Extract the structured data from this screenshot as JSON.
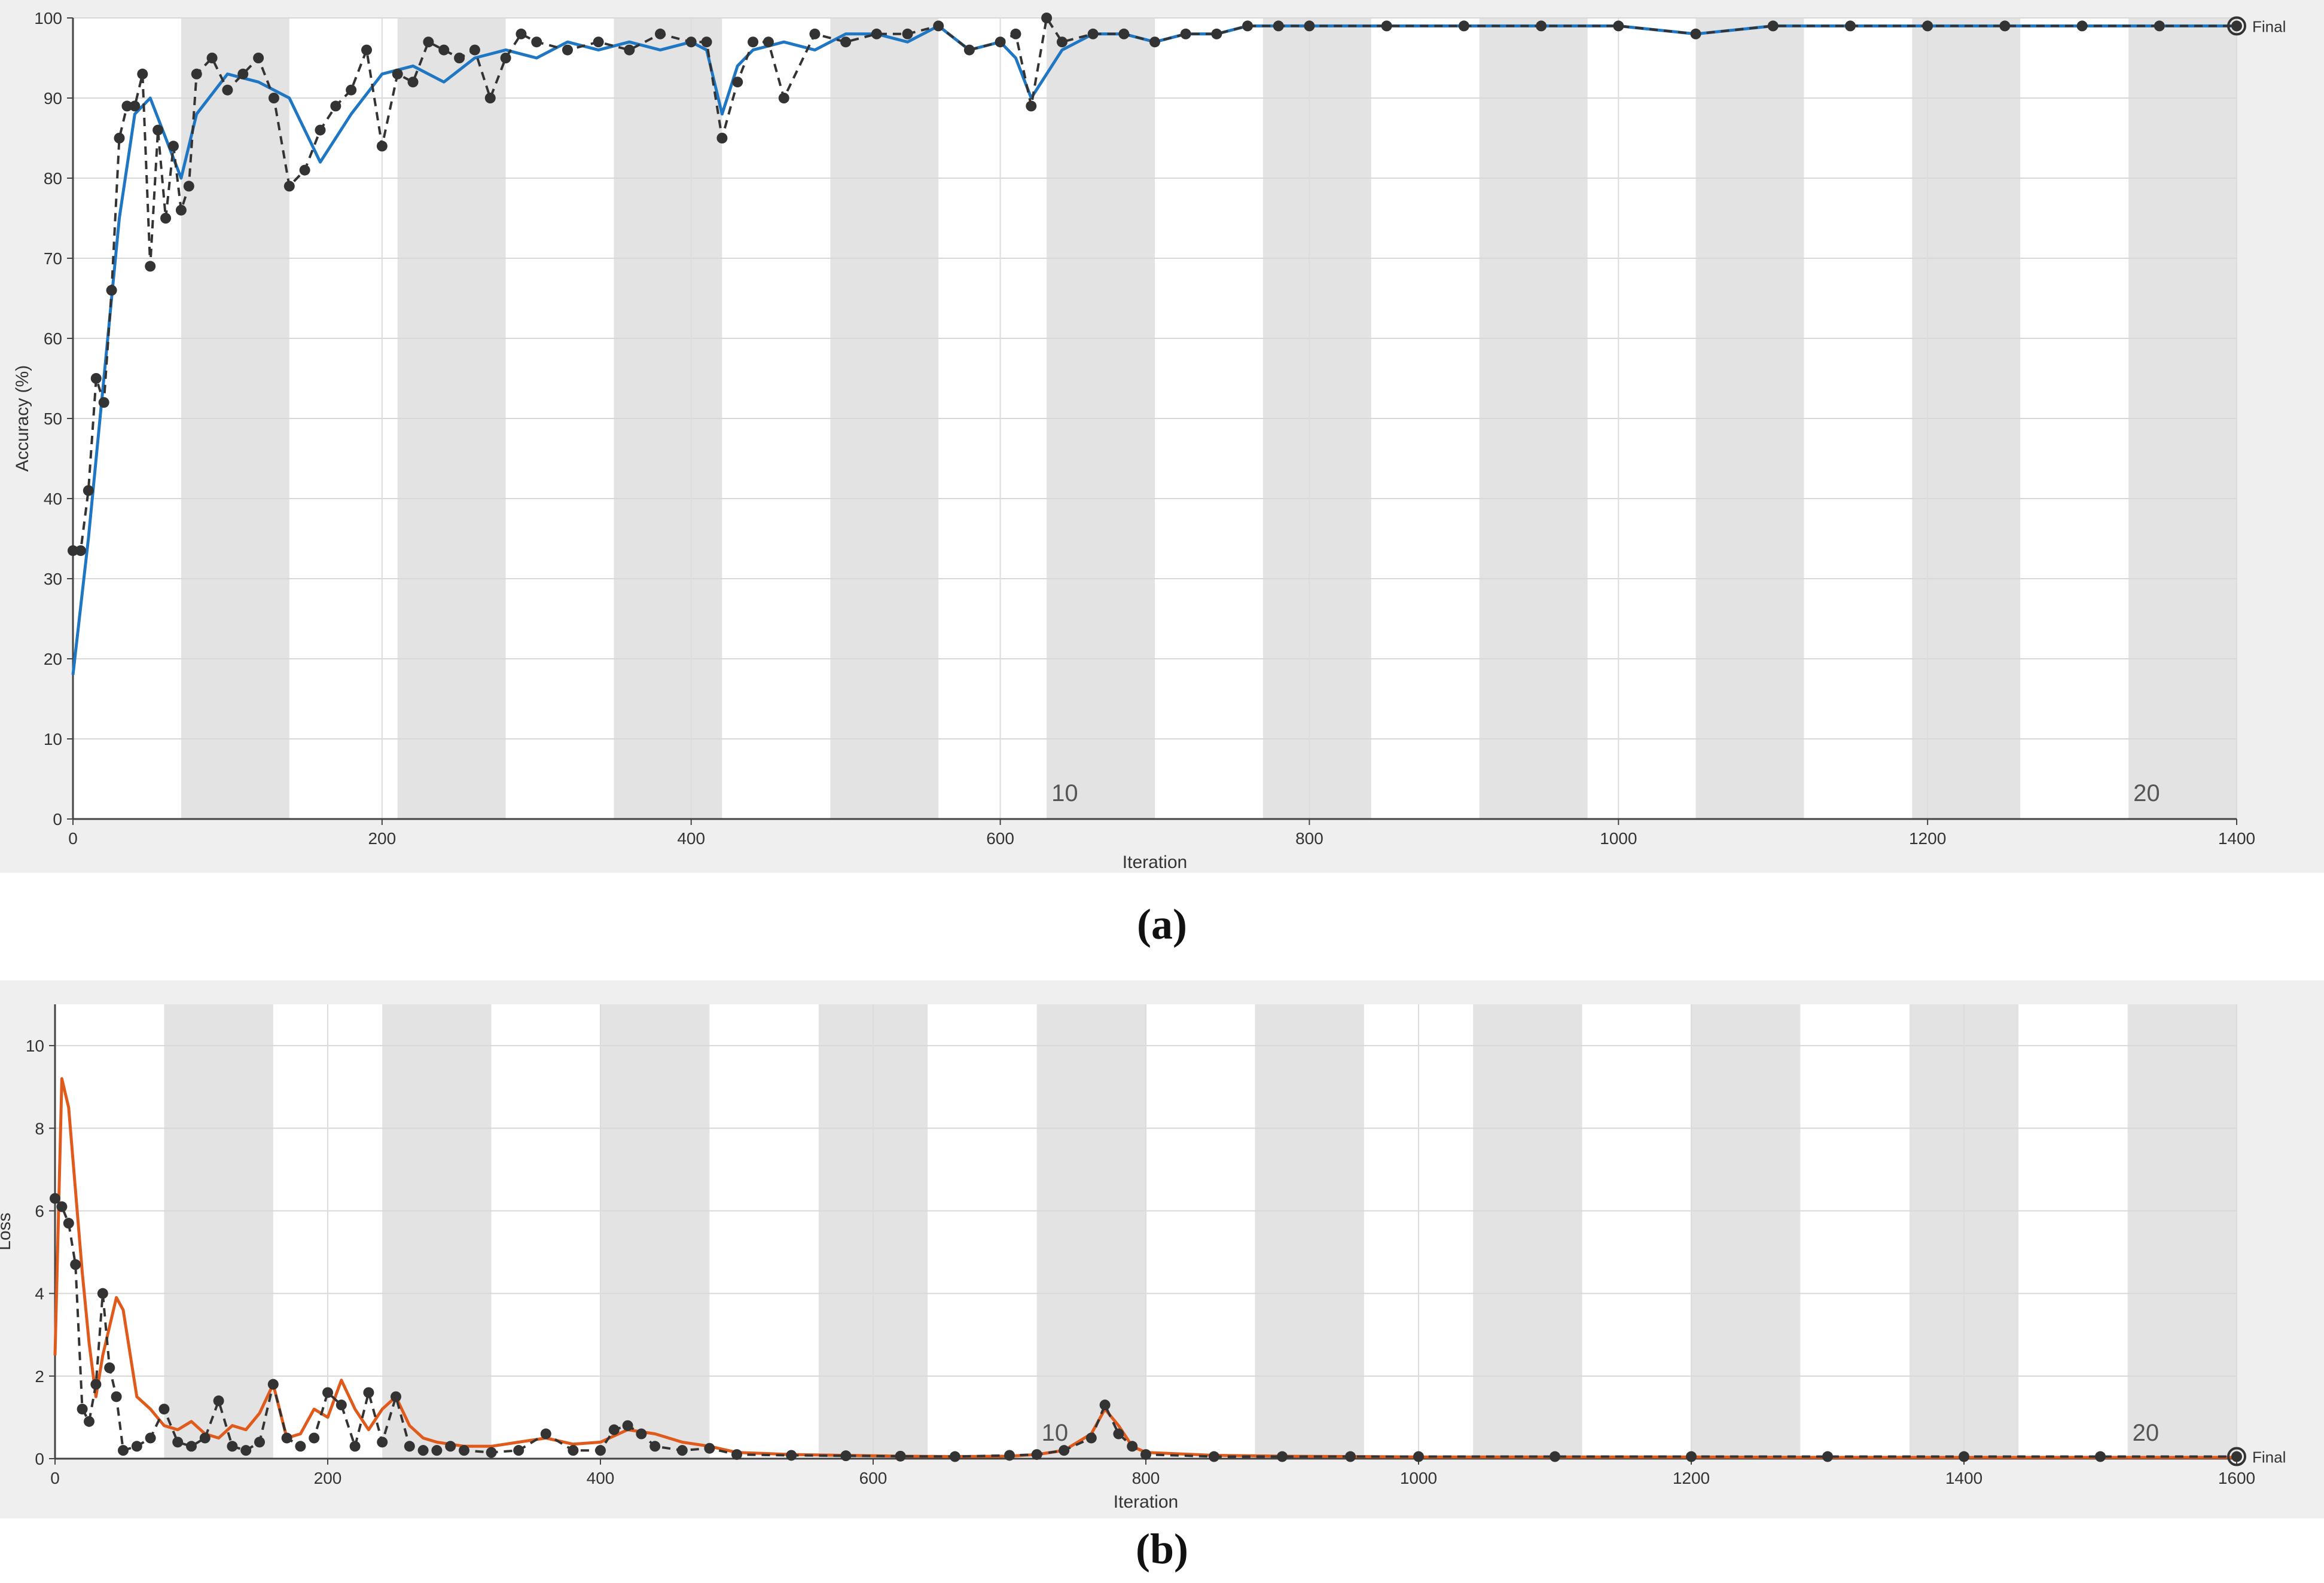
{
  "captions": {
    "a": "(a)",
    "b": "(b)"
  },
  "colors": {
    "accuracy_line": "#1f77c4",
    "loss_line": "#e05a1c",
    "validation": "#333333",
    "epoch_band": "#e3e3e3",
    "frame": "#efefef"
  },
  "chart_data": [
    {
      "type": "line",
      "panel": "a",
      "xlabel": "Iteration",
      "ylabel": "Accuracy (%)",
      "xlim": [
        0,
        1400
      ],
      "ylim": [
        0,
        100
      ],
      "x_ticks": [
        0,
        200,
        400,
        600,
        800,
        1000,
        1200,
        1400
      ],
      "y_ticks": [
        0,
        10,
        20,
        30,
        40,
        50,
        60,
        70,
        80,
        90,
        100
      ],
      "grid": true,
      "epoch_band_width": 70,
      "epoch_labels": [
        {
          "epoch": "10",
          "x": 630
        },
        {
          "epoch": "20",
          "x": 1330
        }
      ],
      "final_label": "Final",
      "series": [
        {
          "style": "training-smoothed",
          "x": [
            0,
            10,
            20,
            30,
            40,
            50,
            60,
            70,
            80,
            100,
            120,
            140,
            160,
            180,
            200,
            220,
            240,
            260,
            280,
            300,
            320,
            340,
            360,
            380,
            400,
            410,
            420,
            430,
            440,
            460,
            480,
            500,
            520,
            540,
            560,
            580,
            600,
            610,
            620,
            640,
            660,
            680,
            700,
            720,
            740,
            760,
            780,
            800,
            850,
            900,
            950,
            1000,
            1050,
            1100,
            1150,
            1200,
            1250,
            1300,
            1350,
            1400
          ],
          "y": [
            18,
            35,
            55,
            75,
            88,
            90,
            85,
            80,
            88,
            93,
            92,
            90,
            82,
            88,
            93,
            94,
            92,
            95,
            96,
            95,
            97,
            96,
            97,
            96,
            97,
            96,
            88,
            94,
            96,
            97,
            96,
            98,
            98,
            97,
            99,
            96,
            97,
            95,
            90,
            96,
            98,
            98,
            97,
            98,
            98,
            99,
            99,
            99,
            99,
            99,
            99,
            99,
            98,
            99,
            99,
            99,
            99,
            99,
            99,
            99
          ]
        },
        {
          "style": "validation",
          "x": [
            0,
            5,
            10,
            15,
            20,
            25,
            30,
            35,
            40,
            45,
            50,
            55,
            60,
            65,
            70,
            75,
            80,
            90,
            100,
            110,
            120,
            130,
            140,
            150,
            160,
            170,
            180,
            190,
            200,
            210,
            220,
            230,
            240,
            250,
            260,
            270,
            280,
            290,
            300,
            320,
            340,
            360,
            380,
            400,
            410,
            420,
            430,
            440,
            450,
            460,
            480,
            500,
            520,
            540,
            560,
            580,
            600,
            610,
            620,
            630,
            640,
            660,
            680,
            700,
            720,
            740,
            760,
            780,
            800,
            850,
            900,
            950,
            1000,
            1050,
            1100,
            1150,
            1200,
            1250,
            1300,
            1350,
            1400
          ],
          "y": [
            33.5,
            33.5,
            41,
            55,
            52,
            66,
            85,
            89,
            89,
            93,
            69,
            86,
            75,
            84,
            76,
            79,
            93,
            95,
            91,
            93,
            95,
            90,
            79,
            81,
            86,
            89,
            91,
            96,
            84,
            93,
            92,
            97,
            96,
            95,
            96,
            90,
            95,
            98,
            97,
            96,
            97,
            96,
            98,
            97,
            97,
            85,
            92,
            97,
            97,
            90,
            98,
            97,
            98,
            98,
            99,
            96,
            97,
            98,
            89,
            100,
            97,
            98,
            98,
            97,
            98,
            98,
            99,
            99,
            99,
            99,
            99,
            99,
            99,
            98,
            99,
            99,
            99,
            99,
            99,
            99,
            99
          ]
        }
      ]
    },
    {
      "type": "line",
      "panel": "b",
      "xlabel": "Iteration",
      "ylabel": "Loss",
      "xlim": [
        0,
        1600
      ],
      "ylim": [
        0,
        11
      ],
      "x_ticks": [
        0,
        200,
        400,
        600,
        800,
        1000,
        1200,
        1400,
        1600
      ],
      "y_ticks": [
        0,
        2,
        4,
        6,
        8,
        10
      ],
      "grid": true,
      "epoch_band_width": 80,
      "epoch_labels": [
        {
          "epoch": "10",
          "x": 720
        },
        {
          "epoch": "20",
          "x": 1520
        }
      ],
      "final_label": "Final",
      "series": [
        {
          "style": "training-smoothed",
          "x": [
            0,
            5,
            10,
            15,
            20,
            25,
            30,
            35,
            40,
            45,
            50,
            60,
            70,
            80,
            90,
            100,
            110,
            120,
            130,
            140,
            150,
            160,
            170,
            180,
            190,
            200,
            210,
            220,
            230,
            240,
            250,
            260,
            270,
            280,
            290,
            300,
            320,
            340,
            360,
            380,
            400,
            420,
            440,
            460,
            480,
            500,
            540,
            580,
            620,
            660,
            700,
            720,
            740,
            760,
            770,
            780,
            790,
            800,
            850,
            900,
            950,
            1000,
            1100,
            1200,
            1300,
            1400,
            1500,
            1600
          ],
          "y": [
            2.5,
            9.2,
            8.5,
            6.5,
            4.5,
            2.8,
            1.5,
            2.5,
            3.2,
            3.9,
            3.6,
            1.5,
            1.2,
            0.8,
            0.7,
            0.9,
            0.6,
            0.5,
            0.8,
            0.7,
            1.1,
            1.8,
            0.5,
            0.6,
            1.2,
            1.0,
            1.9,
            1.2,
            0.7,
            1.2,
            1.5,
            0.8,
            0.5,
            0.4,
            0.35,
            0.3,
            0.3,
            0.4,
            0.5,
            0.35,
            0.4,
            0.7,
            0.6,
            0.4,
            0.3,
            0.15,
            0.1,
            0.08,
            0.06,
            0.05,
            0.06,
            0.1,
            0.2,
            0.6,
            1.2,
            0.8,
            0.3,
            0.15,
            0.08,
            0.06,
            0.05,
            0.04,
            0.04,
            0.04,
            0.03,
            0.03,
            0.03,
            0.03
          ]
        },
        {
          "style": "validation",
          "x": [
            0,
            5,
            10,
            15,
            20,
            25,
            30,
            35,
            40,
            45,
            50,
            60,
            70,
            80,
            90,
            100,
            110,
            120,
            130,
            140,
            150,
            160,
            170,
            180,
            190,
            200,
            210,
            220,
            230,
            240,
            250,
            260,
            270,
            280,
            290,
            300,
            320,
            340,
            360,
            380,
            400,
            410,
            420,
            430,
            440,
            460,
            480,
            500,
            540,
            580,
            620,
            660,
            700,
            720,
            740,
            760,
            770,
            780,
            790,
            800,
            850,
            900,
            950,
            1000,
            1100,
            1200,
            1300,
            1400,
            1500,
            1600
          ],
          "y": [
            6.3,
            6.1,
            5.7,
            4.7,
            1.2,
            0.9,
            1.8,
            4.0,
            2.2,
            1.5,
            0.2,
            0.3,
            0.5,
            1.2,
            0.4,
            0.3,
            0.5,
            1.4,
            0.3,
            0.2,
            0.4,
            1.8,
            0.5,
            0.3,
            0.5,
            1.6,
            1.3,
            0.3,
            1.6,
            0.4,
            1.5,
            0.3,
            0.2,
            0.2,
            0.3,
            0.2,
            0.15,
            0.2,
            0.6,
            0.2,
            0.2,
            0.7,
            0.8,
            0.6,
            0.3,
            0.2,
            0.25,
            0.1,
            0.08,
            0.07,
            0.06,
            0.05,
            0.08,
            0.1,
            0.2,
            0.5,
            1.3,
            0.6,
            0.3,
            0.1,
            0.05,
            0.05,
            0.05,
            0.05,
            0.05,
            0.05,
            0.05,
            0.05,
            0.05,
            0.05
          ]
        }
      ]
    }
  ]
}
